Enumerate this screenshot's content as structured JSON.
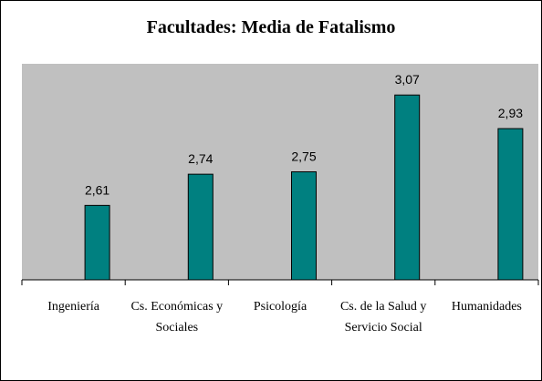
{
  "chart_data": {
    "type": "bar",
    "title": "Facultades: Media de Fatalismo",
    "categories": [
      "Ingeniería",
      "Cs. Económicas y Sociales",
      "Psicología",
      "Cs. de la Salud y Servicio Social",
      "Humanidades"
    ],
    "values": [
      2.61,
      2.74,
      2.75,
      3.07,
      2.93
    ],
    "value_labels": [
      "2,61",
      "2,74",
      "2,75",
      "3,07",
      "2,93"
    ],
    "color": "#008080",
    "ylim": [
      2.3,
      3.2
    ]
  }
}
